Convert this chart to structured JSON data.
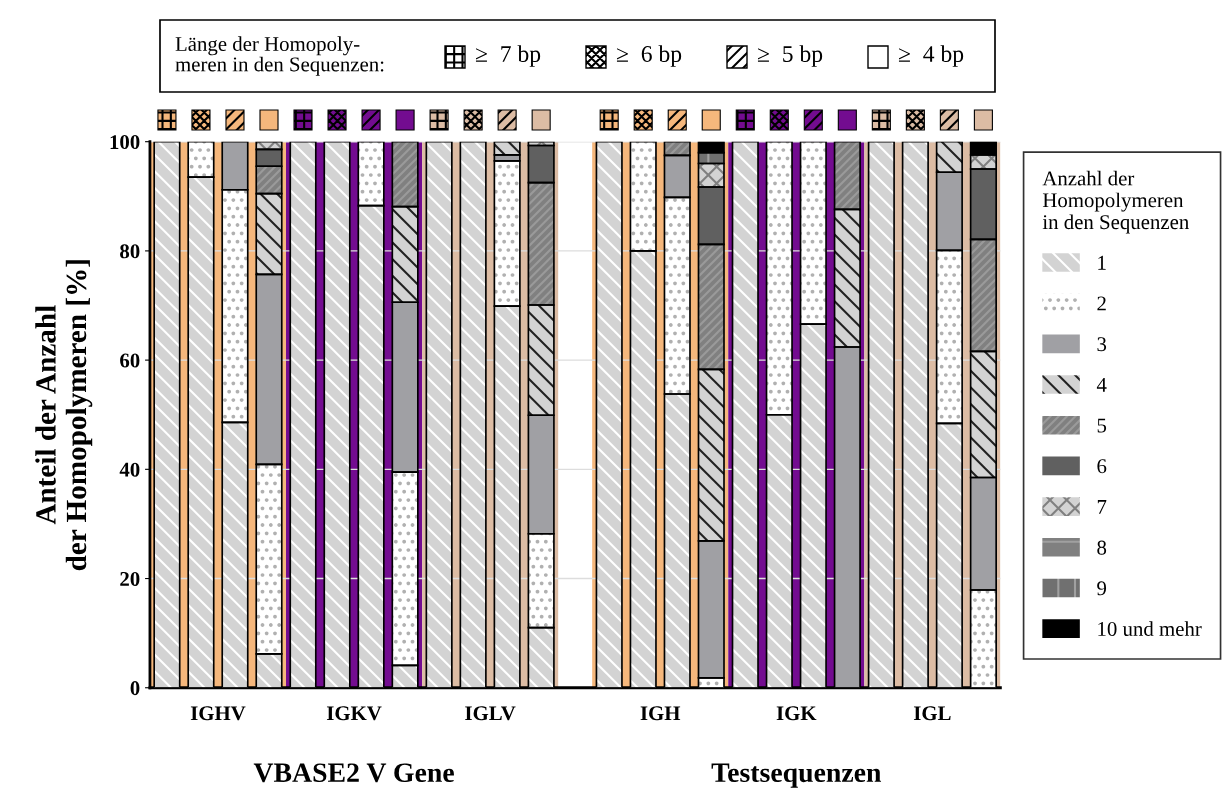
{
  "chart_data": {
    "type": "bar",
    "stacked": true,
    "ylabel": "Anteil der Anzahl\nder Homopolymeren [%]",
    "legend_title": "Anzahl der\nHomopolymeren\nin den Sequenzen",
    "categories": [
      null,
      null,
      null,
      null,
      null,
      null,
      null,
      null,
      null,
      null,
      null,
      null,
      null,
      null,
      null,
      null,
      null,
      null,
      null,
      null,
      null,
      null,
      null,
      null,
      null
    ],
    "series": [
      {
        "name": "1",
        "color": "#d3d3d3",
        "values": [
          100,
          93.5,
          48.6,
          6.2,
          100,
          100,
          88.3,
          4.1,
          100,
          100,
          69.9,
          11.0,
          null,
          100,
          80.0,
          53.8,
          0,
          100,
          50.0,
          66.6,
          0,
          100,
          100,
          48.4,
          0
        ]
      },
      {
        "name": "2",
        "color": "#ffffff",
        "values": [
          0,
          6.5,
          42.6,
          34.7,
          0,
          0,
          11.7,
          35.4,
          0,
          0,
          26.6,
          17.2,
          null,
          0,
          20.0,
          36.0,
          1.8,
          0,
          50.0,
          33.4,
          0,
          0,
          0,
          31.7,
          17.9
        ]
      },
      {
        "name": "3",
        "color": "#a0a0a4",
        "values": [
          0,
          0,
          8.8,
          34.8,
          0,
          0,
          0,
          31.1,
          0,
          0,
          1.1,
          21.7,
          null,
          0,
          0,
          7.7,
          25.1,
          0,
          0,
          0,
          62.4,
          0,
          0,
          14.3,
          20.6
        ]
      },
      {
        "name": "4",
        "color": "#d3d3d3",
        "values": [
          0,
          0,
          0,
          14.8,
          0,
          0,
          0,
          17.5,
          0,
          0,
          2.4,
          20.2,
          null,
          0,
          0,
          0,
          31.4,
          0,
          0,
          0,
          25.2,
          0,
          0,
          5.6,
          23.1
        ]
      },
      {
        "name": "5",
        "color": "#808080",
        "values": [
          0,
          0,
          0,
          5.0,
          0,
          0,
          0,
          11.9,
          0,
          0,
          0,
          22.4,
          null,
          0,
          0,
          2.5,
          22.9,
          0,
          0,
          0,
          12.4,
          0,
          0,
          0,
          20.5
        ]
      },
      {
        "name": "6",
        "color": "#606060",
        "values": [
          0,
          0,
          0,
          3.1,
          0,
          0,
          0,
          0,
          0,
          0,
          0,
          6.8,
          null,
          0,
          0,
          0,
          10.5,
          0,
          0,
          0,
          0,
          0,
          0,
          0,
          12.9
        ]
      },
      {
        "name": "7",
        "color": "#d3d3d3",
        "values": [
          0,
          0,
          0,
          1.4,
          0,
          0,
          0,
          0,
          0,
          0,
          0,
          0.7,
          null,
          0,
          0,
          0,
          4.3,
          0,
          0,
          0,
          0,
          0,
          0,
          0,
          2.6
        ]
      },
      {
        "name": "8",
        "color": "#808080",
        "values": [
          0,
          0,
          0,
          0,
          0,
          0,
          0,
          0,
          0,
          0,
          0,
          0,
          null,
          0,
          0,
          0,
          0,
          0,
          0,
          0,
          0,
          0,
          0,
          0,
          0
        ]
      },
      {
        "name": "9",
        "color": "#707070",
        "values": [
          0,
          0,
          0,
          0,
          0,
          0,
          0,
          0,
          0,
          0,
          0,
          0,
          null,
          0,
          0,
          0,
          2.0,
          0,
          0,
          0,
          0,
          0,
          0,
          0,
          0
        ]
      },
      {
        "name": "10 und mehr",
        "color": "#000000",
        "values": [
          0,
          0,
          0,
          0,
          0,
          0,
          0,
          0,
          0,
          0,
          0,
          0,
          null,
          0,
          0,
          0,
          2.0,
          0,
          0,
          0,
          0,
          0,
          0,
          0,
          2.4
        ]
      }
    ],
    "annotations": [
      "IGHV",
      "IGKV",
      "IGLV",
      "IGH",
      "IGK",
      "IGL",
      "VBASE2 V Gene",
      "Testsequenzen",
      "Länge der Homopoly-\nmeren in den Sequenzen:",
      "≥  7 bp",
      "≥  6 bp",
      "≥  5 bp",
      "≥  4 bp"
    ],
    "ylim": [
      0,
      100
    ],
    "yticks": [
      0,
      20,
      40,
      60,
      80,
      100
    ],
    "grid": "y",
    "legend": "right"
  }
}
